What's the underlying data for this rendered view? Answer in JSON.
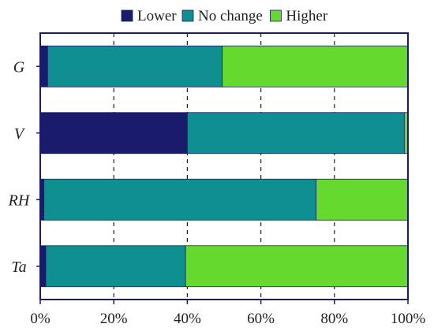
{
  "chart_data": {
    "type": "bar",
    "orientation": "horizontal",
    "stacked": "percent",
    "title": "",
    "xlabel": "",
    "ylabel": "",
    "xlim": [
      0,
      100
    ],
    "x_ticks": [
      "0%",
      "20%",
      "40%",
      "60%",
      "80%",
      "100%"
    ],
    "categories": [
      "G",
      "V",
      "RH",
      "Ta"
    ],
    "series": [
      {
        "name": "Lower",
        "color": "#1b1b6b",
        "values": [
          2,
          40,
          1,
          1.5
        ]
      },
      {
        "name": "No change",
        "color": "#0f8f8f",
        "values": [
          47.5,
          59,
          74,
          38
        ]
      },
      {
        "name": "Higher",
        "color": "#66d92e",
        "values": [
          50.5,
          1,
          25,
          60.5
        ]
      }
    ],
    "grid": "vertical dashed",
    "legend_position": "top"
  }
}
